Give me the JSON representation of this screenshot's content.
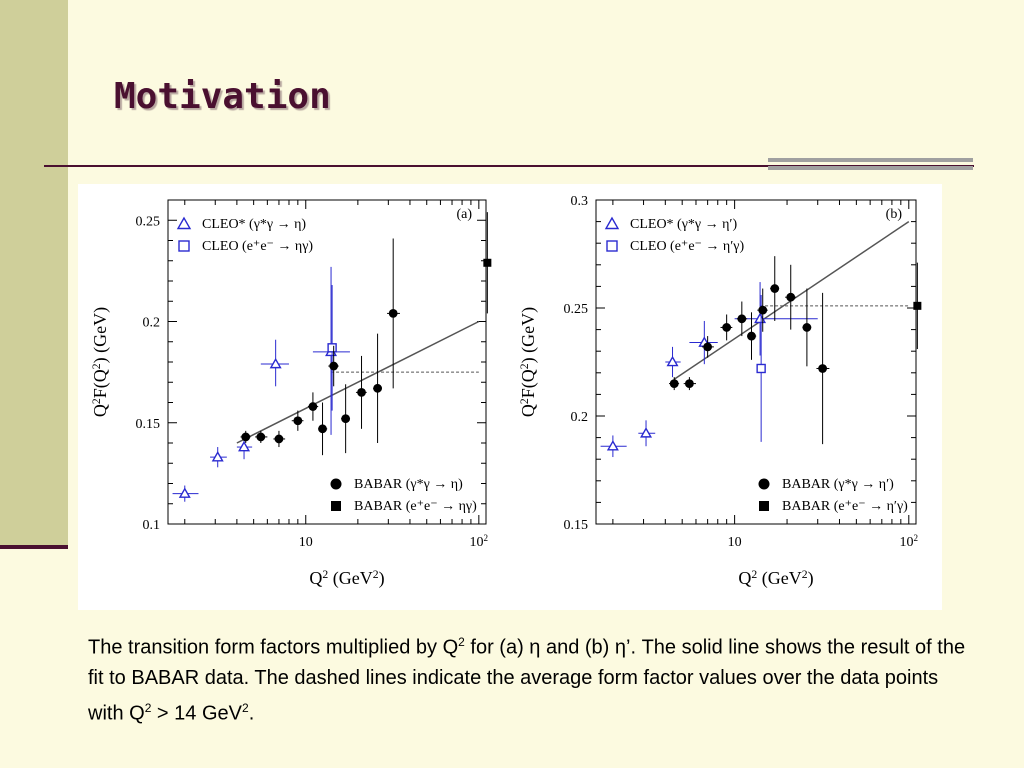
{
  "slide": {
    "title": "Motivation",
    "caption": {
      "p1": "The transition form factors multiplied by Q",
      "sup1": "2",
      "p2": " for (a) η  and (b) η’. The solid line shows the result of the fit to BABAR data. The dashed lines indicate the average form factor values over the data points with Q",
      "sup2": "2",
      "p3": " > 14 GeV",
      "sup3": "2",
      "p4": "."
    }
  },
  "colors": {
    "cleo": "#2a2ad0",
    "babar": "#000000",
    "fit_line": "#555555",
    "title": "#4a1030"
  },
  "chart_data": [
    {
      "type": "scatter",
      "panel_label": "(a)",
      "xscale": "log",
      "xlim": [
        1.6,
        110
      ],
      "ylim": [
        0.1,
        0.26
      ],
      "xticks": [
        {
          "v": 10,
          "label": "10"
        },
        {
          "v": 100,
          "label": "10",
          "sup": "2"
        }
      ],
      "yticks": [
        {
          "v": 0.1,
          "label": "0.1"
        },
        {
          "v": 0.15,
          "label": "0.15"
        },
        {
          "v": 0.2,
          "label": "0.2"
        },
        {
          "v": 0.25,
          "label": "0.25"
        }
      ],
      "xlabel": {
        "a": "Q",
        "b": "2",
        "c": " (GeV",
        "d": "2",
        "e": ")"
      },
      "ylabel": {
        "a": "Q",
        "b": "2",
        "c": "F(Q",
        "d": "2",
        "e": ") (GeV)"
      },
      "legend_top": [
        {
          "marker": "triangle-open",
          "color": "#2a2ad0",
          "text": "CLEO* (γ*γ → η)"
        },
        {
          "marker": "square-open",
          "color": "#2a2ad0",
          "text": "CLEO (e⁺e⁻ → ηγ)"
        }
      ],
      "legend_bottom": [
        {
          "marker": "circle",
          "color": "#000000",
          "text": "BABAR (γ*γ → η)"
        },
        {
          "marker": "square",
          "color": "#000000",
          "text": "BABAR (e⁺e⁻ → ηγ)"
        }
      ],
      "fit_line": {
        "x": [
          4,
          100
        ],
        "y": [
          0.14,
          0.2
        ]
      },
      "dashed_line": {
        "x": [
          14,
          100
        ],
        "y": [
          0.175,
          0.175
        ]
      },
      "series": [
        {
          "name": "CLEO* (γ*γ → η)",
          "marker": "triangle-open",
          "color": "#2a2ad0",
          "points": [
            {
              "x": 2.0,
              "y": 0.115,
              "xlo": 1.7,
              "xhi": 2.4,
              "ylo": 0.111,
              "yhi": 0.119
            },
            {
              "x": 3.1,
              "y": 0.133,
              "xlo": 2.8,
              "xhi": 3.5,
              "ylo": 0.128,
              "yhi": 0.138
            },
            {
              "x": 4.4,
              "y": 0.138,
              "xlo": 4.0,
              "xhi": 4.9,
              "ylo": 0.132,
              "yhi": 0.144
            },
            {
              "x": 6.7,
              "y": 0.179,
              "xlo": 5.5,
              "xhi": 8.0,
              "ylo": 0.168,
              "yhi": 0.191
            },
            {
              "x": 14.0,
              "y": 0.185,
              "xlo": 11.0,
              "xhi": 18.0,
              "ylo": 0.144,
              "yhi": 0.227
            }
          ]
        },
        {
          "name": "CLEO (e⁺e⁻ → ηγ)",
          "marker": "square-open",
          "color": "#2a2ad0",
          "points": [
            {
              "x": 14.2,
              "y": 0.187,
              "ylo": 0.156,
              "yhi": 0.218
            }
          ]
        },
        {
          "name": "BABAR (γ*γ → η)",
          "marker": "circle",
          "color": "#000000",
          "points": [
            {
              "x": 4.5,
              "y": 0.143,
              "xlo": 4.2,
              "xhi": 4.8,
              "ylo": 0.14,
              "yhi": 0.146
            },
            {
              "x": 5.5,
              "y": 0.143,
              "xlo": 5.1,
              "xhi": 6.0,
              "ylo": 0.14,
              "yhi": 0.146
            },
            {
              "x": 7.0,
              "y": 0.142,
              "xlo": 6.5,
              "xhi": 7.6,
              "ylo": 0.138,
              "yhi": 0.146
            },
            {
              "x": 9.0,
              "y": 0.151,
              "xlo": 8.3,
              "xhi": 9.7,
              "ylo": 0.146,
              "yhi": 0.156
            },
            {
              "x": 11.0,
              "y": 0.158,
              "xlo": 10.3,
              "xhi": 11.8,
              "ylo": 0.151,
              "yhi": 0.165
            },
            {
              "x": 12.5,
              "y": 0.147,
              "xlo": 11.8,
              "xhi": 13.3,
              "ylo": 0.134,
              "yhi": 0.16
            },
            {
              "x": 14.5,
              "y": 0.178,
              "xlo": 13.5,
              "xhi": 15.5,
              "ylo": 0.168,
              "yhi": 0.188
            },
            {
              "x": 17.0,
              "y": 0.152,
              "xlo": 16.0,
              "xhi": 18.0,
              "ylo": 0.135,
              "yhi": 0.169
            },
            {
              "x": 21.0,
              "y": 0.165,
              "xlo": 19.5,
              "xhi": 22.5,
              "ylo": 0.147,
              "yhi": 0.183
            },
            {
              "x": 26.0,
              "y": 0.167,
              "xlo": 24.5,
              "xhi": 27.5,
              "ylo": 0.14,
              "yhi": 0.194
            },
            {
              "x": 32.0,
              "y": 0.204,
              "xlo": 29.5,
              "xhi": 35.0,
              "ylo": 0.167,
              "yhi": 0.241
            }
          ]
        },
        {
          "name": "BABAR (e⁺e⁻ → ηγ)",
          "marker": "square",
          "color": "#000000",
          "points": [
            {
              "x": 112,
              "y": 0.229,
              "ylo": 0.204,
              "yhi": 0.254
            }
          ]
        }
      ]
    },
    {
      "type": "scatter",
      "panel_label": "(b)",
      "xscale": "log",
      "xlim": [
        1.6,
        110
      ],
      "ylim": [
        0.15,
        0.3
      ],
      "xticks": [
        {
          "v": 10,
          "label": "10"
        },
        {
          "v": 100,
          "label": "10",
          "sup": "2"
        }
      ],
      "yticks": [
        {
          "v": 0.15,
          "label": "0.15"
        },
        {
          "v": 0.2,
          "label": "0.2"
        },
        {
          "v": 0.25,
          "label": "0.25"
        },
        {
          "v": 0.3,
          "label": "0.3"
        }
      ],
      "xlabel": {
        "a": "Q",
        "b": "2",
        "c": " (GeV",
        "d": "2",
        "e": ")"
      },
      "ylabel": {
        "a": "Q",
        "b": "2",
        "c": "F(Q",
        "d": "2",
        "e": ") (GeV)"
      },
      "legend_top": [
        {
          "marker": "triangle-open",
          "color": "#2a2ad0",
          "text": "CLEO* (γ*γ → η′)"
        },
        {
          "marker": "square-open",
          "color": "#2a2ad0",
          "text": "CLEO (e⁺e⁻ → η′γ)"
        }
      ],
      "legend_bottom": [
        {
          "marker": "circle",
          "color": "#000000",
          "text": "BABAR (γ*γ → η′)"
        },
        {
          "marker": "square",
          "color": "#000000",
          "text": "BABAR (e⁺e⁻ → η′γ)"
        }
      ],
      "fit_line": {
        "x": [
          4.5,
          100
        ],
        "y": [
          0.217,
          0.29
        ]
      },
      "dashed_line": {
        "x": [
          14,
          100
        ],
        "y": [
          0.251,
          0.251
        ]
      },
      "series": [
        {
          "name": "CLEO* (γ*γ → η′)",
          "marker": "triangle-open",
          "color": "#2a2ad0",
          "points": [
            {
              "x": 2.0,
              "y": 0.186,
              "xlo": 1.7,
              "xhi": 2.4,
              "ylo": 0.181,
              "yhi": 0.191
            },
            {
              "x": 3.1,
              "y": 0.192,
              "xlo": 2.8,
              "xhi": 3.5,
              "ylo": 0.186,
              "yhi": 0.198
            },
            {
              "x": 4.4,
              "y": 0.225,
              "xlo": 4.0,
              "xhi": 4.9,
              "ylo": 0.218,
              "yhi": 0.232
            },
            {
              "x": 6.7,
              "y": 0.234,
              "xlo": 5.5,
              "xhi": 8.0,
              "ylo": 0.224,
              "yhi": 0.244
            },
            {
              "x": 14.0,
              "y": 0.245,
              "xlo": 10.0,
              "xhi": 30.0,
              "ylo": 0.228,
              "yhi": 0.262
            }
          ]
        },
        {
          "name": "CLEO (e⁺e⁻ → η′γ)",
          "marker": "square-open",
          "color": "#2a2ad0",
          "points": [
            {
              "x": 14.2,
              "y": 0.222,
              "ylo": 0.188,
              "yhi": 0.256
            }
          ]
        },
        {
          "name": "BABAR (γ*γ → η′)",
          "marker": "circle",
          "color": "#000000",
          "points": [
            {
              "x": 4.5,
              "y": 0.215,
              "xlo": 4.2,
              "xhi": 4.8,
              "ylo": 0.212,
              "yhi": 0.218
            },
            {
              "x": 5.5,
              "y": 0.215,
              "xlo": 5.1,
              "xhi": 6.0,
              "ylo": 0.212,
              "yhi": 0.218
            },
            {
              "x": 7.0,
              "y": 0.232,
              "xlo": 6.5,
              "xhi": 7.6,
              "ylo": 0.227,
              "yhi": 0.237
            },
            {
              "x": 9.0,
              "y": 0.241,
              "xlo": 8.3,
              "xhi": 9.7,
              "ylo": 0.235,
              "yhi": 0.247
            },
            {
              "x": 11.0,
              "y": 0.245,
              "xlo": 10.3,
              "xhi": 11.8,
              "ylo": 0.237,
              "yhi": 0.253
            },
            {
              "x": 12.5,
              "y": 0.237,
              "xlo": 11.8,
              "xhi": 13.3,
              "ylo": 0.226,
              "yhi": 0.248
            },
            {
              "x": 14.5,
              "y": 0.249,
              "xlo": 13.5,
              "xhi": 15.5,
              "ylo": 0.239,
              "yhi": 0.259
            },
            {
              "x": 17.0,
              "y": 0.259,
              "xlo": 16.0,
              "xhi": 18.0,
              "ylo": 0.244,
              "yhi": 0.274
            },
            {
              "x": 21.0,
              "y": 0.255,
              "xlo": 19.5,
              "xhi": 22.5,
              "ylo": 0.24,
              "yhi": 0.27
            },
            {
              "x": 26.0,
              "y": 0.241,
              "xlo": 24.5,
              "xhi": 27.5,
              "ylo": 0.223,
              "yhi": 0.259
            },
            {
              "x": 32.0,
              "y": 0.222,
              "xlo": 29.5,
              "xhi": 35.0,
              "ylo": 0.187,
              "yhi": 0.257
            }
          ]
        },
        {
          "name": "BABAR (e⁺e⁻ → η′γ)",
          "marker": "square",
          "color": "#000000",
          "points": [
            {
              "x": 112,
              "y": 0.251,
              "ylo": 0.231,
              "yhi": 0.271
            }
          ]
        }
      ]
    }
  ]
}
